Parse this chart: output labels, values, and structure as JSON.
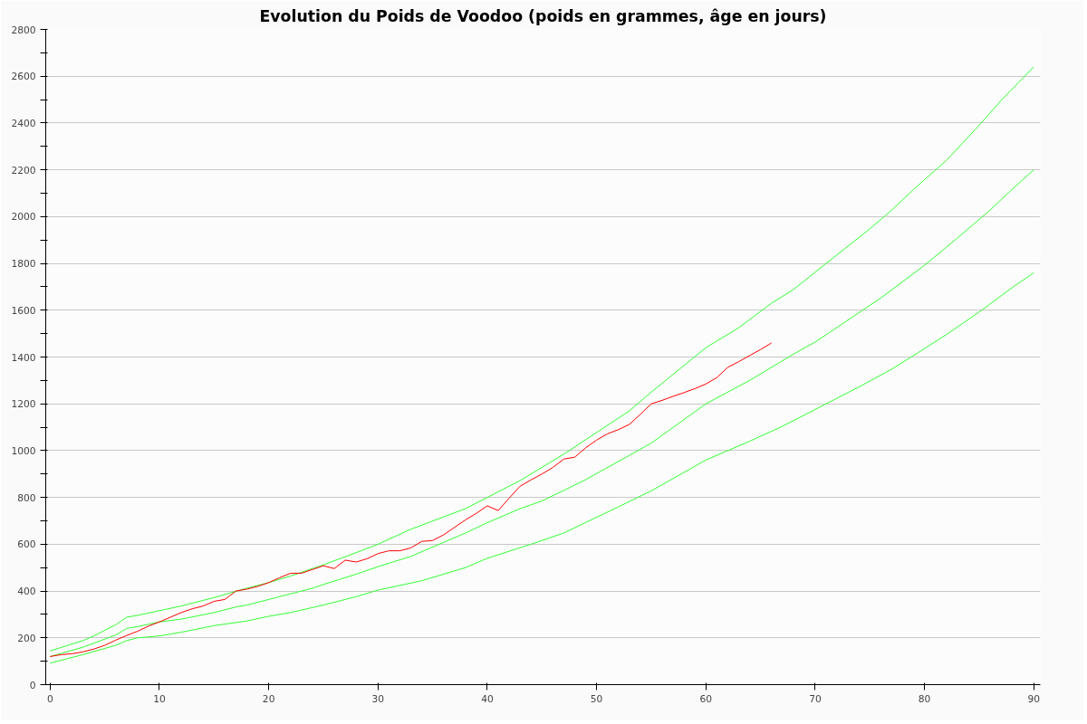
{
  "chart_data": {
    "type": "line",
    "title": "Evolution du Poids de Voodoo (poids en grammes, âge en jours)",
    "xlim": [
      -0.4,
      90.6
    ],
    "xticks": [
      0,
      10,
      20,
      30,
      40,
      50,
      60,
      70,
      80,
      90
    ],
    "ylim": [
      0,
      2800
    ],
    "yticks": [
      0,
      {
        "value": 100,
        "label": null
      },
      200,
      {
        "value": 300,
        "label": null
      },
      400,
      {
        "value": 500,
        "label": null
      },
      600,
      {
        "value": 700,
        "label": null
      },
      800,
      {
        "value": 900,
        "label": null
      },
      1000,
      {
        "value": 1100,
        "label": null
      },
      1200,
      {
        "value": 1300,
        "label": null
      },
      1400,
      {
        "value": 1500,
        "label": null
      },
      1600,
      {
        "value": 1700,
        "label": null
      },
      1800,
      {
        "value": 1900,
        "label": null
      },
      2000,
      {
        "value": 2100,
        "label": null
      },
      2200,
      {
        "value": 2300,
        "label": null
      },
      2400,
      {
        "value": 2500,
        "label": null
      },
      2600,
      {
        "value": 2700,
        "label": null
      },
      2800
    ],
    "grid": "y",
    "line_style": "solid",
    "marker": "none",
    "series": [
      {
        "color": "#33ff33",
        "x": [
          0,
          3,
          4,
          6,
          7,
          8,
          10,
          12,
          15,
          18,
          20,
          22,
          25,
          28,
          30,
          33,
          38,
          40,
          43,
          47,
          53,
          55,
          60,
          63,
          66,
          68,
          71,
          75,
          77,
          79,
          82,
          85,
          87,
          90
        ],
        "values": [
          144,
          188,
          208,
          256,
          288,
          296,
          316,
          336,
          372,
          412,
          436,
          464,
          512,
          564,
          600,
          664,
          752,
          800,
          872,
          985,
          1170,
          1250,
          1440,
          1525,
          1630,
          1688,
          1800,
          1948,
          2028,
          2116,
          2240,
          2390,
          2496,
          2640
        ]
      },
      {
        "color": "#33ff33",
        "x": [
          0,
          3,
          6,
          7,
          8,
          10,
          12,
          15,
          17,
          18,
          20,
          22,
          24,
          25,
          28,
          30,
          33,
          38,
          40,
          43,
          45,
          47,
          49,
          55,
          60,
          64,
          68,
          70,
          76,
          80,
          83,
          86,
          88,
          90
        ],
        "values": [
          120,
          160,
          212,
          240,
          248,
          268,
          280,
          308,
          332,
          340,
          364,
          388,
          412,
          428,
          472,
          504,
          548,
          648,
          692,
          752,
          785,
          830,
          876,
          1032,
          1200,
          1300,
          1412,
          1464,
          1652,
          1792,
          1908,
          2028,
          2116,
          2200
        ]
      },
      {
        "color": "#33ff33",
        "x": [
          0,
          3,
          6,
          7,
          8,
          10,
          12,
          15,
          18,
          20,
          22,
          25,
          28,
          30,
          34,
          38,
          40,
          44,
          47,
          52,
          55,
          60,
          64,
          67,
          74,
          77,
          80,
          82,
          85,
          88,
          90
        ],
        "values": [
          92,
          128,
          168,
          188,
          200,
          208,
          224,
          252,
          272,
          292,
          308,
          340,
          376,
          404,
          444,
          500,
          540,
          600,
          648,
          760,
          828,
          960,
          1040,
          1104,
          1272,
          1348,
          1436,
          1496,
          1592,
          1696,
          1760
        ]
      },
      {
        "color": "#ff0000",
        "x": [
          0,
          1,
          2,
          3,
          4,
          5,
          6,
          7,
          8,
          9,
          10,
          11,
          12,
          13,
          14,
          15,
          16,
          17,
          18,
          19,
          20,
          21,
          22,
          23,
          24,
          25,
          26,
          27,
          28,
          29,
          30,
          31,
          32,
          33,
          34,
          35,
          36,
          37,
          38,
          39,
          40,
          41,
          42,
          43,
          44,
          45,
          46,
          47,
          48,
          49,
          50,
          51,
          52,
          53,
          54,
          55,
          56,
          57,
          58,
          59,
          60,
          61,
          62,
          63,
          64,
          65,
          66
        ],
        "values": [
          120,
          128,
          132,
          140,
          152,
          168,
          190,
          210,
          228,
          250,
          268,
          288,
          308,
          324,
          336,
          356,
          364,
          400,
          408,
          420,
          436,
          457,
          476,
          476,
          492,
          508,
          496,
          532,
          524,
          538,
          560,
          572,
          572,
          584,
          612,
          616,
          640,
          672,
          704,
          732,
          764,
          744,
          797,
          848,
          875,
          900,
          928,
          964,
          972,
          1012,
          1045,
          1072,
          1090,
          1112,
          1155,
          1200,
          1215,
          1232,
          1248,
          1265,
          1285,
          1312,
          1356,
          1380,
          1406,
          1432,
          1460
        ]
      }
    ]
  }
}
